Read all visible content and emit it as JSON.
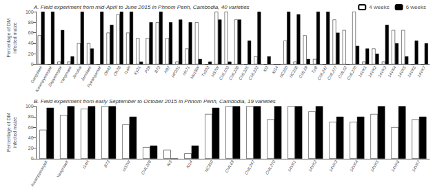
{
  "chart_data": [
    {
      "type": "bar",
      "title": "A. Field experiment from mid-April to June 2015 in Phnom Penh, Cambodia, 40 varieties",
      "categories": [
        "Gangdaek",
        "Kwampyeongok",
        "Dapyeongok",
        "Yangmaek",
        "Jimshai",
        "Jamdaek",
        "Pyeongamok",
        "Oh43",
        "Oh7B",
        "I14H",
        "Ky21",
        "P39",
        "B73",
        "H97",
        "HP301",
        "Mc71",
        "Mo18W",
        "Tx303",
        "M37W",
        "CML103",
        "CML228",
        "CML325",
        "CML333",
        "Ki3",
        "Ki14",
        "NC350",
        "NC358",
        "CML69",
        "Tzi8",
        "CML247",
        "CML277",
        "CML52",
        "CML270",
        "14VK1",
        "14VK2",
        "14VK3",
        "14VK4",
        "14VK5",
        "14VK6",
        "14VK7"
      ],
      "series": [
        {
          "name": "4 weeks",
          "color": "white",
          "values": [
            55,
            0,
            5,
            5,
            40,
            40,
            0,
            60,
            95,
            60,
            50,
            50,
            80,
            50,
            5,
            30,
            80,
            0,
            100,
            100,
            85,
            0,
            15,
            0,
            0,
            45,
            5,
            55,
            10,
            0,
            85,
            65,
            100,
            5,
            30,
            5,
            65,
            65,
            0,
            0
          ]
        },
        {
          "name": "6 weeks",
          "color": "black",
          "values": [
            100,
            100,
            65,
            15,
            100,
            30,
            100,
            75,
            100,
            100,
            5,
            80,
            100,
            80,
            85,
            80,
            10,
            5,
            85,
            5,
            85,
            45,
            100,
            15,
            0,
            100,
            95,
            10,
            100,
            100,
            60,
            0,
            35,
            30,
            20,
            75,
            40,
            15,
            45,
            40
          ]
        }
      ],
      "ylabel": "Percentage of DM\ninfected maize",
      "ylim": [
        0,
        100
      ],
      "yticks": [
        0,
        20,
        40,
        60,
        80,
        100
      ],
      "grid": false,
      "legend": "upper right"
    },
    {
      "type": "bar",
      "title": "B. Field experiment from early September to October 2015 in Phnom Penh, Cambodia, 19 varieties",
      "categories": [
        "Kwampyeongok",
        "Yangmaek",
        "I14H",
        "B73",
        "M37W",
        "CML228",
        "Ki3",
        "Ki14",
        "NC350",
        "CML69",
        "CML247",
        "CML270",
        "14VK1",
        "14VK2",
        "14VK3",
        "14VK4",
        "14VK5",
        "14VK6",
        "14VK7"
      ],
      "series": [
        {
          "name": "4 weeks",
          "color": "white",
          "values": [
            55,
            83,
            95,
            100,
            65,
            22,
            17,
            10,
            85,
            100,
            100,
            75,
            100,
            90,
            70,
            70,
            85,
            60,
            75
          ]
        },
        {
          "name": "6 weeks",
          "color": "black",
          "values": [
            97,
            100,
            100,
            100,
            80,
            25,
            0,
            25,
            97,
            100,
            100,
            100,
            100,
            100,
            80,
            80,
            100,
            100,
            80
          ]
        }
      ],
      "ylabel": "Percentage of DM\ninfected maize",
      "ylim": [
        0,
        100
      ],
      "yticks": [
        0,
        20,
        40,
        60,
        80,
        100
      ],
      "grid": false
    }
  ]
}
